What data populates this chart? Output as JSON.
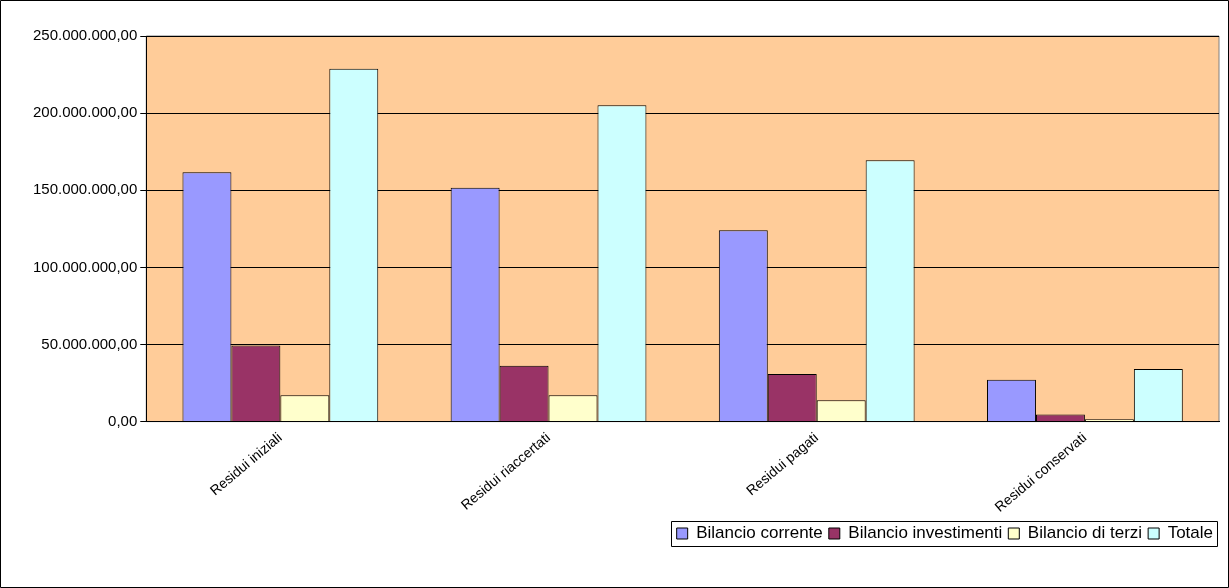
{
  "chart_data": {
    "type": "bar",
    "categories": [
      "Residui iniziali",
      "Residui riaccertati",
      "Residui pagati",
      "Residui conservati"
    ],
    "series": [
      {
        "name": "Bilancio corrente",
        "color": "#9999ff",
        "values": [
          161700000,
          151600000,
          124000000,
          27200000
        ]
      },
      {
        "name": "Bilancio investimenti",
        "color": "#993366",
        "values": [
          49400000,
          36200000,
          30900000,
          4600000
        ]
      },
      {
        "name": "Bilancio di terzi",
        "color": "#ffffcc",
        "values": [
          17100000,
          17100000,
          13800000,
          1600000
        ]
      },
      {
        "name": "Totale",
        "color": "#ccffff",
        "values": [
          228800000,
          205100000,
          169400000,
          34100000
        ]
      }
    ],
    "ylim": [
      0,
      250000000
    ],
    "yticks": [
      {
        "value": 0,
        "label": "0,00"
      },
      {
        "value": 50000000,
        "label": "50.000.000,00"
      },
      {
        "value": 100000000,
        "label": "100.000.000,00"
      },
      {
        "value": 150000000,
        "label": "150.000.000,00"
      },
      {
        "value": 200000000,
        "label": "200.000.000,00"
      },
      {
        "value": 250000000,
        "label": "250.000.000,00"
      }
    ],
    "grid": "y",
    "legend": "bottom"
  }
}
